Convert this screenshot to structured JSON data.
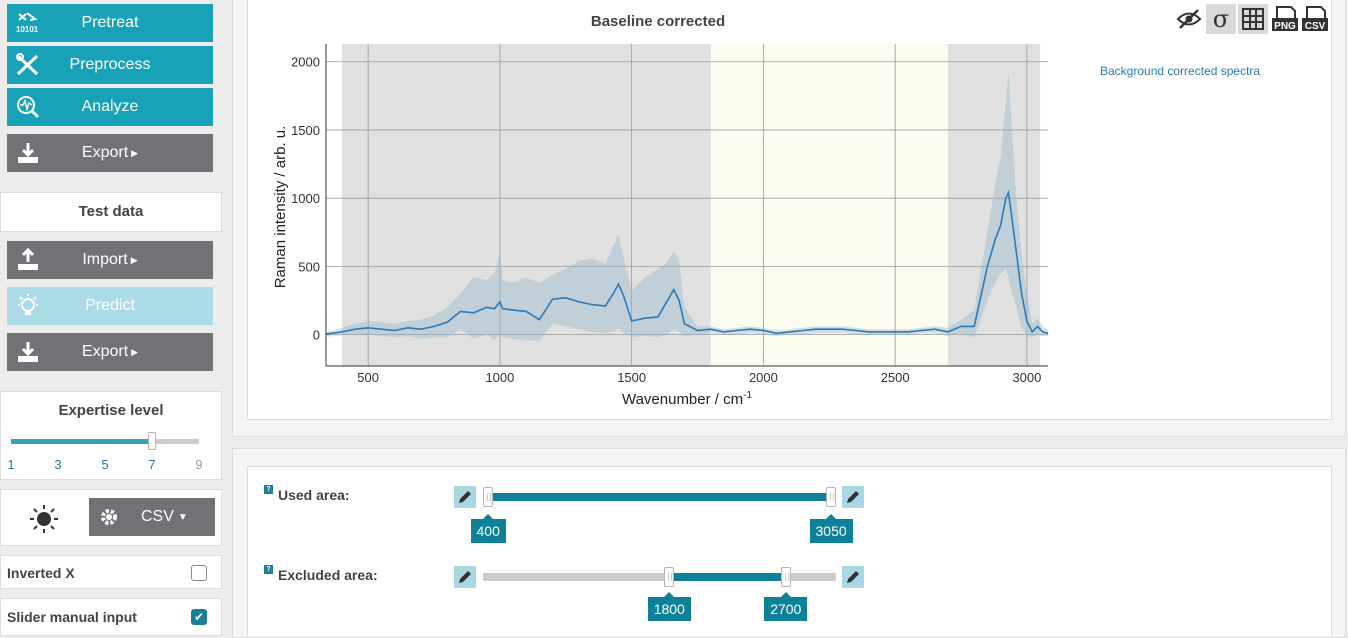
{
  "sidebar": {
    "buttons": {
      "pretreat": "Pretreat",
      "preprocess": "Preprocess",
      "analyze": "Analyze",
      "export1": "Export",
      "import": "Import",
      "predict": "Predict",
      "export2": "Export"
    },
    "test_data_title": "Test data",
    "expertise": {
      "title": "Expertise level",
      "ticks": [
        "1",
        "3",
        "5",
        "7",
        "9"
      ],
      "value": 7
    },
    "format_button": "CSV",
    "options": [
      {
        "label": "Inverted X",
        "checked": false
      },
      {
        "label": "Slider manual input",
        "checked": true
      }
    ]
  },
  "toolbar_icons": [
    "hide-icon",
    "sigma-icon",
    "grid-icon",
    "png-download-icon",
    "csv-download-icon"
  ],
  "legend": {
    "label": "Background corrected spectra"
  },
  "chart_data": {
    "type": "line",
    "title": "Baseline corrected",
    "xlabel": "Wavenumber / cm",
    "xlabel_sup": "-1",
    "ylabel": "Raman intensity / arb. u.",
    "xlim": [
      340,
      3080
    ],
    "ylim": [
      -230,
      2130
    ],
    "xticks": [
      500,
      1000,
      1500,
      2000,
      2500,
      3000
    ],
    "yticks": [
      0,
      500,
      1000,
      1500,
      2000
    ],
    "excluded_regions": [
      [
        400,
        1800
      ],
      [
        2700,
        3050
      ]
    ],
    "included_region": [
      1800,
      2700
    ],
    "series": [
      {
        "name": "Background corrected spectra",
        "color": "#2a7ab5",
        "x": [
          340,
          400,
          450,
          500,
          550,
          600,
          650,
          700,
          750,
          800,
          850,
          900,
          950,
          980,
          1000,
          1010,
          1050,
          1100,
          1150,
          1200,
          1250,
          1300,
          1350,
          1400,
          1430,
          1450,
          1470,
          1500,
          1550,
          1600,
          1630,
          1660,
          1680,
          1700,
          1750,
          1800,
          1850,
          1900,
          1950,
          2000,
          2050,
          2100,
          2150,
          2200,
          2250,
          2300,
          2350,
          2400,
          2450,
          2500,
          2550,
          2600,
          2650,
          2700,
          2750,
          2800,
          2850,
          2880,
          2900,
          2920,
          2930,
          2940,
          2960,
          2980,
          3000,
          3020,
          3040,
          3060,
          3080
        ],
        "y": [
          5,
          20,
          40,
          50,
          40,
          30,
          50,
          40,
          60,
          90,
          170,
          160,
          200,
          190,
          240,
          190,
          180,
          170,
          110,
          260,
          270,
          240,
          220,
          210,
          300,
          370,
          280,
          100,
          120,
          130,
          230,
          330,
          250,
          80,
          30,
          40,
          20,
          30,
          40,
          30,
          10,
          20,
          30,
          40,
          40,
          40,
          30,
          20,
          20,
          20,
          20,
          30,
          40,
          20,
          60,
          60,
          500,
          700,
          800,
          1000,
          1040,
          900,
          600,
          300,
          100,
          20,
          60,
          20,
          10
        ],
        "upper": [
          15,
          50,
          80,
          100,
          90,
          80,
          100,
          110,
          140,
          200,
          300,
          420,
          400,
          450,
          600,
          400,
          380,
          420,
          380,
          440,
          480,
          540,
          560,
          520,
          650,
          730,
          560,
          320,
          420,
          480,
          520,
          610,
          540,
          200,
          60,
          60,
          40,
          50,
          60,
          50,
          30,
          40,
          50,
          60,
          60,
          60,
          50,
          40,
          40,
          40,
          40,
          50,
          60,
          50,
          110,
          180,
          750,
          1100,
          1300,
          1700,
          1920,
          1600,
          1000,
          600,
          300,
          80,
          120,
          60,
          30
        ],
        "lower": [
          -15,
          -5,
          0,
          0,
          -10,
          -20,
          -10,
          -30,
          -20,
          -20,
          40,
          -30,
          0,
          -40,
          10,
          -20,
          -30,
          -40,
          -50,
          80,
          60,
          40,
          20,
          10,
          20,
          50,
          10,
          -20,
          -10,
          -20,
          0,
          40,
          20,
          -10,
          0,
          10,
          0,
          0,
          10,
          0,
          -10,
          0,
          0,
          10,
          10,
          10,
          0,
          0,
          0,
          0,
          0,
          10,
          10,
          -10,
          10,
          -20,
          250,
          380,
          450,
          480,
          420,
          320,
          200,
          50,
          -10,
          -20,
          0,
          -10,
          -10
        ]
      }
    ]
  },
  "controls": {
    "used_area": {
      "label": "Used area:",
      "low": "400",
      "high": "3050",
      "low_value": 400,
      "high_value": 3050
    },
    "excluded_area": {
      "label": "Excluded area:",
      "low": "1800",
      "high": "2700",
      "low_value": 1800,
      "high_value": 2700
    },
    "help": "?",
    "slider_range": [
      400,
      3050
    ]
  }
}
